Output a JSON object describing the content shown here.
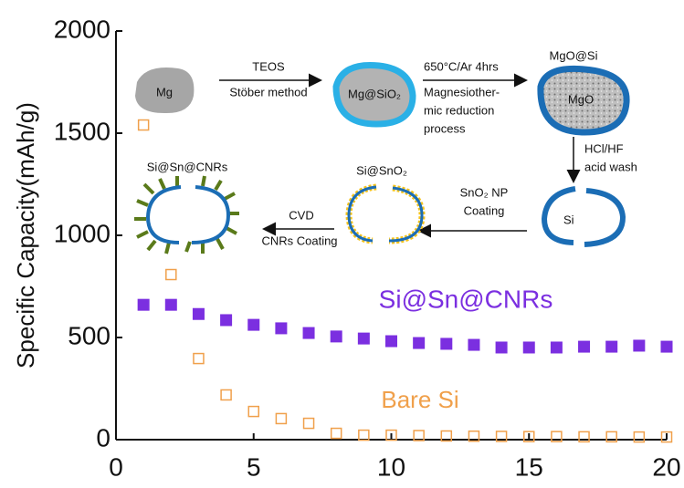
{
  "chart_data": {
    "type": "scatter",
    "ylabel": "Specific Capacity(mAh/g)",
    "x": [
      1,
      2,
      3,
      4,
      5,
      6,
      7,
      8,
      9,
      10,
      11,
      12,
      13,
      14,
      15,
      16,
      17,
      18,
      19,
      20
    ],
    "series": [
      {
        "name": "Si@Sn@CNRs",
        "color": "#7b2fe0",
        "marker": "square-filled",
        "values": [
          660,
          660,
          615,
          585,
          562,
          545,
          522,
          505,
          495,
          482,
          473,
          469,
          464,
          451,
          451,
          451,
          455,
          455,
          460,
          455
        ]
      },
      {
        "name": "Bare Si",
        "color": "#f0a04b",
        "marker": "square-open",
        "values": [
          1540,
          808,
          397,
          219,
          138,
          103,
          80,
          31,
          22,
          22,
          20,
          18,
          17,
          16,
          15,
          15,
          14,
          14,
          13,
          13
        ]
      }
    ],
    "xlim": [
      0,
      20
    ],
    "xticks": [
      0,
      5,
      10,
      15,
      20
    ],
    "ylim": [
      0,
      2000
    ],
    "yticks": [
      0,
      500,
      1000,
      1500,
      2000
    ],
    "inset_labels": [
      "Mg",
      "TEOS",
      "Stöber method",
      "Mg@SiO₂",
      "650°C/Ar 4hrs",
      "Magnesiother-",
      "mic reduction",
      "process",
      "MgO@Si",
      "MgO",
      "HCl/HF",
      "acid wash",
      "Si",
      "SnO₂ NP",
      "Coating",
      "Si@SnO₂",
      "Si@Sn@CNRs",
      "CVD",
      "CNRs Coating"
    ]
  }
}
